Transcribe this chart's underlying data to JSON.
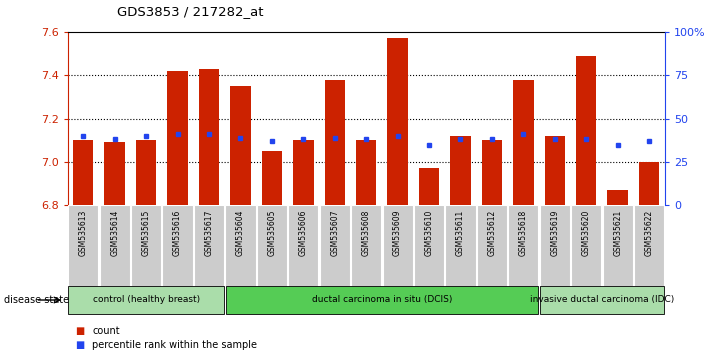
{
  "title": "GDS3853 / 217282_at",
  "samples": [
    "GSM535613",
    "GSM535614",
    "GSM535615",
    "GSM535616",
    "GSM535617",
    "GSM535604",
    "GSM535605",
    "GSM535606",
    "GSM535607",
    "GSM535608",
    "GSM535609",
    "GSM535610",
    "GSM535611",
    "GSM535612",
    "GSM535618",
    "GSM535619",
    "GSM535620",
    "GSM535621",
    "GSM535622"
  ],
  "counts": [
    7.1,
    7.09,
    7.1,
    7.42,
    7.43,
    7.35,
    7.05,
    7.1,
    7.38,
    7.1,
    7.57,
    6.97,
    7.12,
    7.1,
    7.38,
    7.12,
    7.49,
    6.87,
    7.0
  ],
  "percentiles": [
    40,
    38,
    40,
    41,
    41,
    39,
    37,
    38,
    39,
    38,
    40,
    35,
    38,
    38,
    41,
    38,
    38,
    35,
    37
  ],
  "ymin": 6.8,
  "ymax": 7.6,
  "ytick_values": [
    6.8,
    7.0,
    7.2,
    7.4,
    7.6
  ],
  "right_ytick_values": [
    0,
    25,
    50,
    75,
    100
  ],
  "bar_color": "#cc2200",
  "dot_color": "#2244ee",
  "cell_bg": "#cccccc",
  "groups": [
    {
      "label": "control (healthy breast)",
      "start": 0,
      "end": 5,
      "color": "#aaddaa"
    },
    {
      "label": "ductal carcinoma in situ (DCIS)",
      "start": 5,
      "end": 15,
      "color": "#55cc55"
    },
    {
      "label": "invasive ductal carcinoma (IDC)",
      "start": 15,
      "end": 19,
      "color": "#aaddaa"
    }
  ],
  "disease_state_label": "disease state",
  "legend_count_color": "#cc2200",
  "legend_pct_color": "#2244ee"
}
